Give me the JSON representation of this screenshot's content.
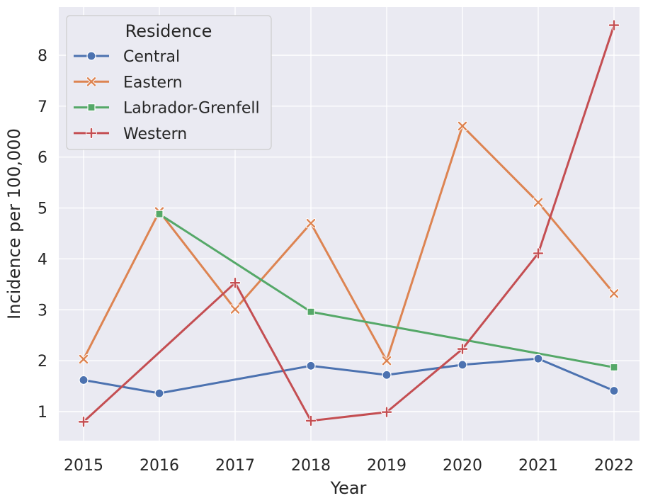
{
  "chart_data": {
    "type": "line",
    "xlabel": "Year",
    "ylabel": "Incidence per 100,000",
    "x": [
      2015,
      2016,
      2017,
      2018,
      2019,
      2020,
      2021,
      2022
    ],
    "x_tick_labels": [
      "2015",
      "2016",
      "2017",
      "2018",
      "2019",
      "2020",
      "2021",
      "2022"
    ],
    "y_ticks": [
      1,
      2,
      3,
      4,
      5,
      6,
      7,
      8
    ],
    "y_tick_labels": [
      "1",
      "2",
      "3",
      "4",
      "5",
      "6",
      "7",
      "8"
    ],
    "ylim": [
      0.4,
      8.9
    ],
    "grid": true,
    "background": "#eaeaf2",
    "legend": {
      "title": "Residence",
      "placement": "top-left"
    },
    "series": [
      {
        "name": "Central",
        "color": "#4c72b0",
        "marker": "circle",
        "values": [
          1.62,
          1.36,
          null,
          1.9,
          1.72,
          1.92,
          2.04,
          1.41
        ]
      },
      {
        "name": "Eastern",
        "color": "#dd8452",
        "marker": "x",
        "values": [
          2.03,
          4.93,
          3.01,
          4.7,
          2.0,
          6.61,
          5.11,
          3.32
        ]
      },
      {
        "name": "Labrador-Grenfell",
        "color": "#55a868",
        "marker": "square",
        "values": [
          null,
          4.88,
          null,
          2.96,
          null,
          null,
          null,
          1.87
        ]
      },
      {
        "name": "Western",
        "color": "#c44e52",
        "marker": "plus",
        "values": [
          0.8,
          null,
          3.53,
          0.82,
          0.99,
          2.23,
          4.11,
          8.59
        ]
      }
    ]
  }
}
